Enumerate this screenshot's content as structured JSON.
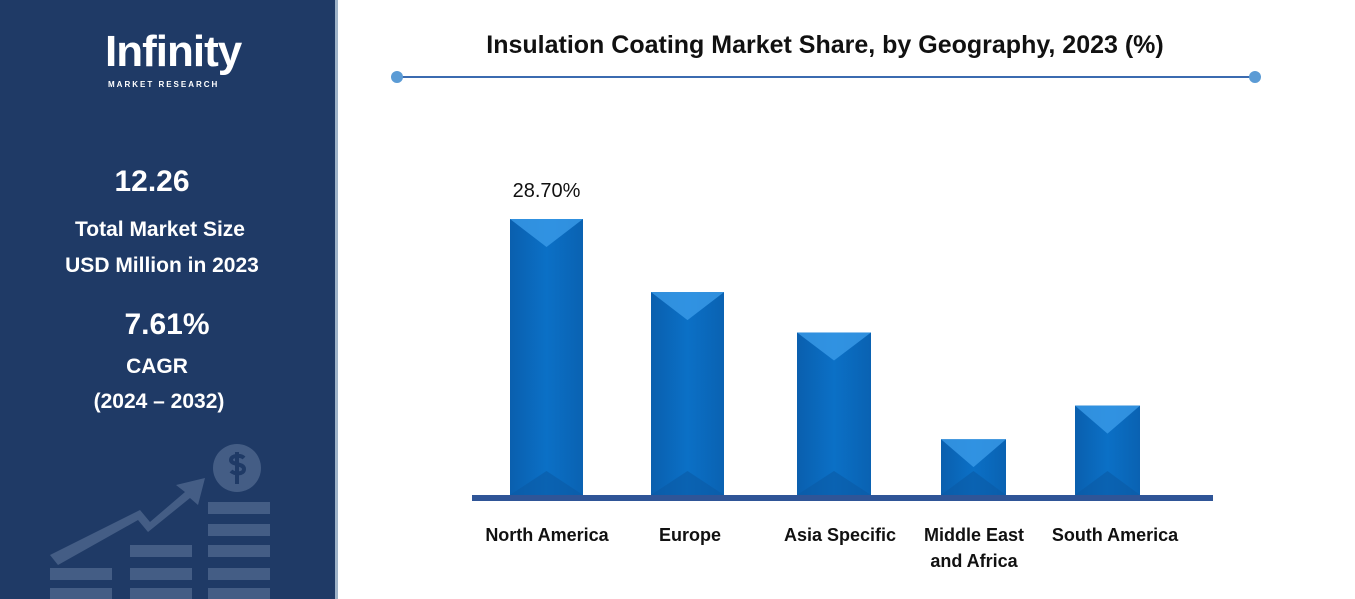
{
  "sidebar": {
    "logo": "Infinity",
    "logo_sub": "MARKET RESEARCH",
    "market_size": "12.26",
    "market_size_label1": "Total Market Size",
    "market_size_label2": "USD Million in 2023",
    "cagr": "7.61%",
    "cagr_label": "CAGR",
    "cagr_period": "(2024 – 2032)"
  },
  "chart_data": {
    "type": "bar",
    "title": "Insulation Coating Market Share, by Geography, 2023 (%)",
    "categories": [
      "North America",
      "Europe",
      "Asia Specific",
      "Middle East and Africa",
      "South America"
    ],
    "category_lines": [
      [
        "North America"
      ],
      [
        "Europe"
      ],
      [
        "Asia Specific"
      ],
      [
        "Middle East",
        "and Africa"
      ],
      [
        "South America"
      ]
    ],
    "values": [
      28.7,
      21.1,
      16.9,
      5.8,
      9.3
    ],
    "data_labels": [
      "28.70%",
      "",
      "",
      "",
      ""
    ],
    "ylim": [
      0,
      28.7
    ],
    "grid": false,
    "bar_color": "#0b6fc4",
    "axis_color": "#2f5597"
  }
}
